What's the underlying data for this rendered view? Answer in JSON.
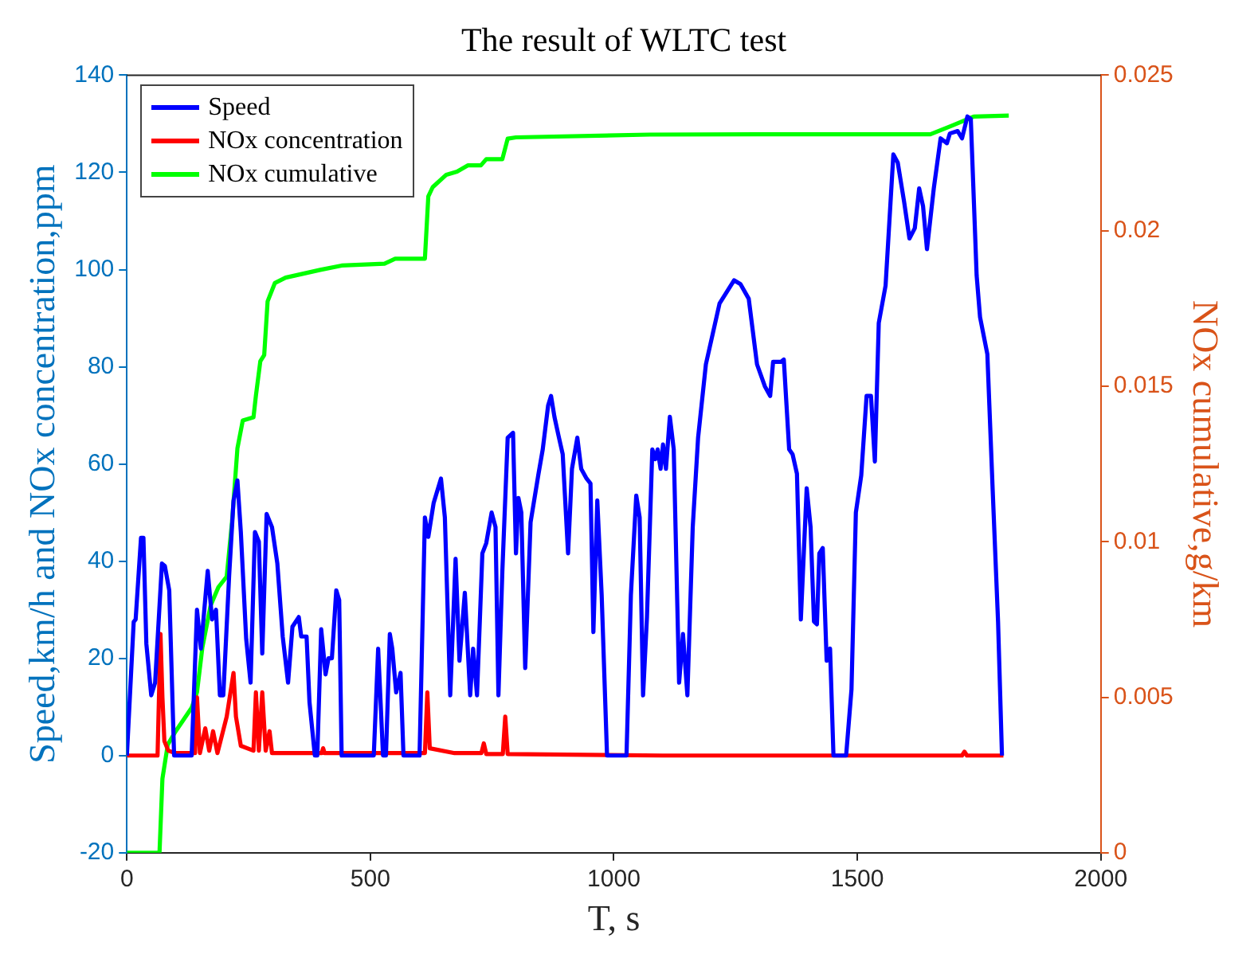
{
  "chart_data": {
    "type": "line",
    "title": "The result of WLTC test",
    "xlabel": "T, s",
    "ylabel": "Speed,km/h and NOx concentration,ppm",
    "y2label": "NOx cumulative,g/km",
    "xlim": [
      0,
      2000
    ],
    "xticks": [
      0,
      500,
      1000,
      1500,
      2000
    ],
    "ylim": [
      -20,
      140
    ],
    "yticks": [
      -20,
      0,
      20,
      40,
      60,
      80,
      100,
      120,
      140
    ],
    "y2lim": [
      0,
      0.025
    ],
    "y2ticks": [
      0,
      0.005,
      0.01,
      0.015,
      0.02,
      0.025
    ],
    "grid": false,
    "legend": "top left",
    "marker": "none",
    "line_style": "solid",
    "series": [
      {
        "name": "Speed",
        "color": "#0000ff",
        "x": [
          0,
          14,
          18,
          29,
          34,
          40,
          50,
          58,
          72,
          78,
          87,
          97,
          133,
          144,
          152,
          166,
          175,
          183,
          191,
          198,
          210,
          219,
          227,
          234,
          245,
          254,
          263,
          271,
          278,
          287,
          298,
          309,
          320,
          331,
          340,
          353,
          358,
          369,
          375,
          386,
          391,
          399,
          408,
          414,
          421,
          430,
          436,
          441,
          507,
          516,
          526,
          532,
          540,
          545,
          553,
          562,
          568,
          601,
          612,
          619,
          630,
          645,
          653,
          664,
          675,
          683,
          694,
          705,
          711,
          719,
          730,
          738,
          749,
          757,
          763,
          771,
          782,
          793,
          799,
          804,
          810,
          818,
          829,
          845,
          854,
          865,
          871,
          878,
          886,
          895,
          906,
          914,
          925,
          933,
          944,
          952,
          958,
          966,
          975,
          986,
          1026,
          1035,
          1046,
          1053,
          1060,
          1068,
          1079,
          1085,
          1090,
          1096,
          1101,
          1107,
          1115,
          1123,
          1134,
          1142,
          1151,
          1162,
          1173,
          1189,
          1217,
          1247,
          1260,
          1277,
          1294,
          1310,
          1321,
          1327,
          1343,
          1349,
          1360,
          1367,
          1376,
          1384,
          1396,
          1404,
          1411,
          1417,
          1422,
          1429,
          1437,
          1444,
          1451,
          1477,
          1488,
          1497,
          1508,
          1519,
          1528,
          1536,
          1544,
          1558,
          1574,
          1583,
          1596,
          1607,
          1618,
          1627,
          1635,
          1643,
          1657,
          1671,
          1684,
          1690,
          1706,
          1715,
          1726,
          1733,
          1745,
          1752,
          1767,
          1778,
          1789,
          1797
        ],
        "values": [
          0,
          27.5,
          28,
          44.8,
          44.8,
          23,
          12.4,
          15,
          39.5,
          39,
          34,
          0,
          0,
          30,
          22,
          38,
          28,
          30,
          12.4,
          12.4,
          37,
          52.4,
          56.6,
          46,
          24,
          15,
          46,
          44,
          21,
          49.7,
          47,
          39.5,
          24.5,
          15,
          26.5,
          28.5,
          24.5,
          24.5,
          11,
          0,
          0,
          26,
          16.7,
          20,
          20,
          34,
          32,
          0,
          0,
          22,
          0,
          0,
          25,
          22,
          13,
          17,
          0,
          0,
          49,
          45,
          52,
          57,
          49,
          12.4,
          40.5,
          19.5,
          33.5,
          12.4,
          22,
          12.4,
          41.6,
          43.7,
          50,
          47,
          12.4,
          37.8,
          65.4,
          66.4,
          41.6,
          53,
          50,
          18,
          48,
          57.8,
          63,
          72,
          74,
          69.7,
          66,
          62,
          41.6,
          59,
          65.4,
          59,
          57,
          56,
          25.4,
          52.5,
          33,
          0,
          0,
          33,
          53.5,
          49,
          12.4,
          28.5,
          63,
          61,
          63,
          59,
          64,
          59,
          69.7,
          63,
          15,
          25,
          12.4,
          47,
          65.4,
          80.5,
          93,
          97.8,
          97,
          94,
          80.5,
          76,
          74,
          81,
          81,
          81.5,
          63,
          62,
          58,
          28,
          55,
          47,
          27.6,
          27,
          41.6,
          42.7,
          19.5,
          22,
          0,
          0,
          13.6,
          50,
          57.6,
          74,
          74,
          60.5,
          89,
          96.7,
          123.7,
          122,
          114,
          106.4,
          108.5,
          116.7,
          113,
          104.2,
          116.7,
          127,
          126,
          128,
          128.5,
          127,
          131.5,
          131,
          98.8,
          90.2,
          82.6,
          54.5,
          27.5,
          0
        ]
      },
      {
        "name": "NOx concentration",
        "color": "#ff0000",
        "x": [
          0,
          63,
          69,
          73,
          77,
          85,
          100,
          140,
          144,
          150,
          161,
          169,
          177,
          186,
          205,
          219,
          224,
          234,
          260,
          265,
          271,
          278,
          285,
          293,
          298,
          330,
          400,
          403,
          406,
          612,
          617,
          622,
          673,
          728,
          733,
          738,
          772,
          777,
          782,
          1100,
          1715,
          1720,
          1725,
          1800
        ],
        "values": [
          0,
          0,
          25,
          12,
          3,
          1,
          0.5,
          0.5,
          12,
          0.5,
          5.6,
          1,
          5,
          0.5,
          8,
          17,
          8,
          2,
          1,
          13,
          1,
          13,
          1,
          5,
          0.5,
          0.5,
          0.5,
          1.5,
          0.5,
          0.5,
          13,
          1.5,
          0.5,
          0.5,
          2.5,
          0.3,
          0.3,
          8,
          0.3,
          0,
          0,
          0.8,
          0,
          0
        ]
      },
      {
        "name": "NOx cumulative",
        "color": "#00ff00",
        "axis": "y2",
        "x": [
          0,
          67,
          73,
          84,
          100,
          133,
          144,
          155,
          172,
          188,
          205,
          216,
          227,
          238,
          260,
          265,
          274,
          282,
          289,
          304,
          326,
          397,
          441,
          529,
          551,
          612,
          619,
          628,
          656,
          678,
          700,
          727,
          738,
          771,
          782,
          799,
          1074,
          1294,
          1574,
          1650,
          1695,
          1739,
          1811
        ],
        "values": [
          0,
          0,
          0.00238,
          0.00348,
          0.0039,
          0.00466,
          0.00516,
          0.0066,
          0.00795,
          0.00854,
          0.00888,
          0.01064,
          0.013,
          0.0139,
          0.014,
          0.0147,
          0.0158,
          0.016,
          0.01773,
          0.01832,
          0.01849,
          0.01874,
          0.01888,
          0.01894,
          0.0191,
          0.0191,
          0.0211,
          0.0214,
          0.0218,
          0.0219,
          0.0221,
          0.0221,
          0.0223,
          0.0223,
          0.02296,
          0.023,
          0.02309,
          0.0231,
          0.0231,
          0.0231,
          0.02338,
          0.02367,
          0.0237
        ]
      }
    ]
  }
}
